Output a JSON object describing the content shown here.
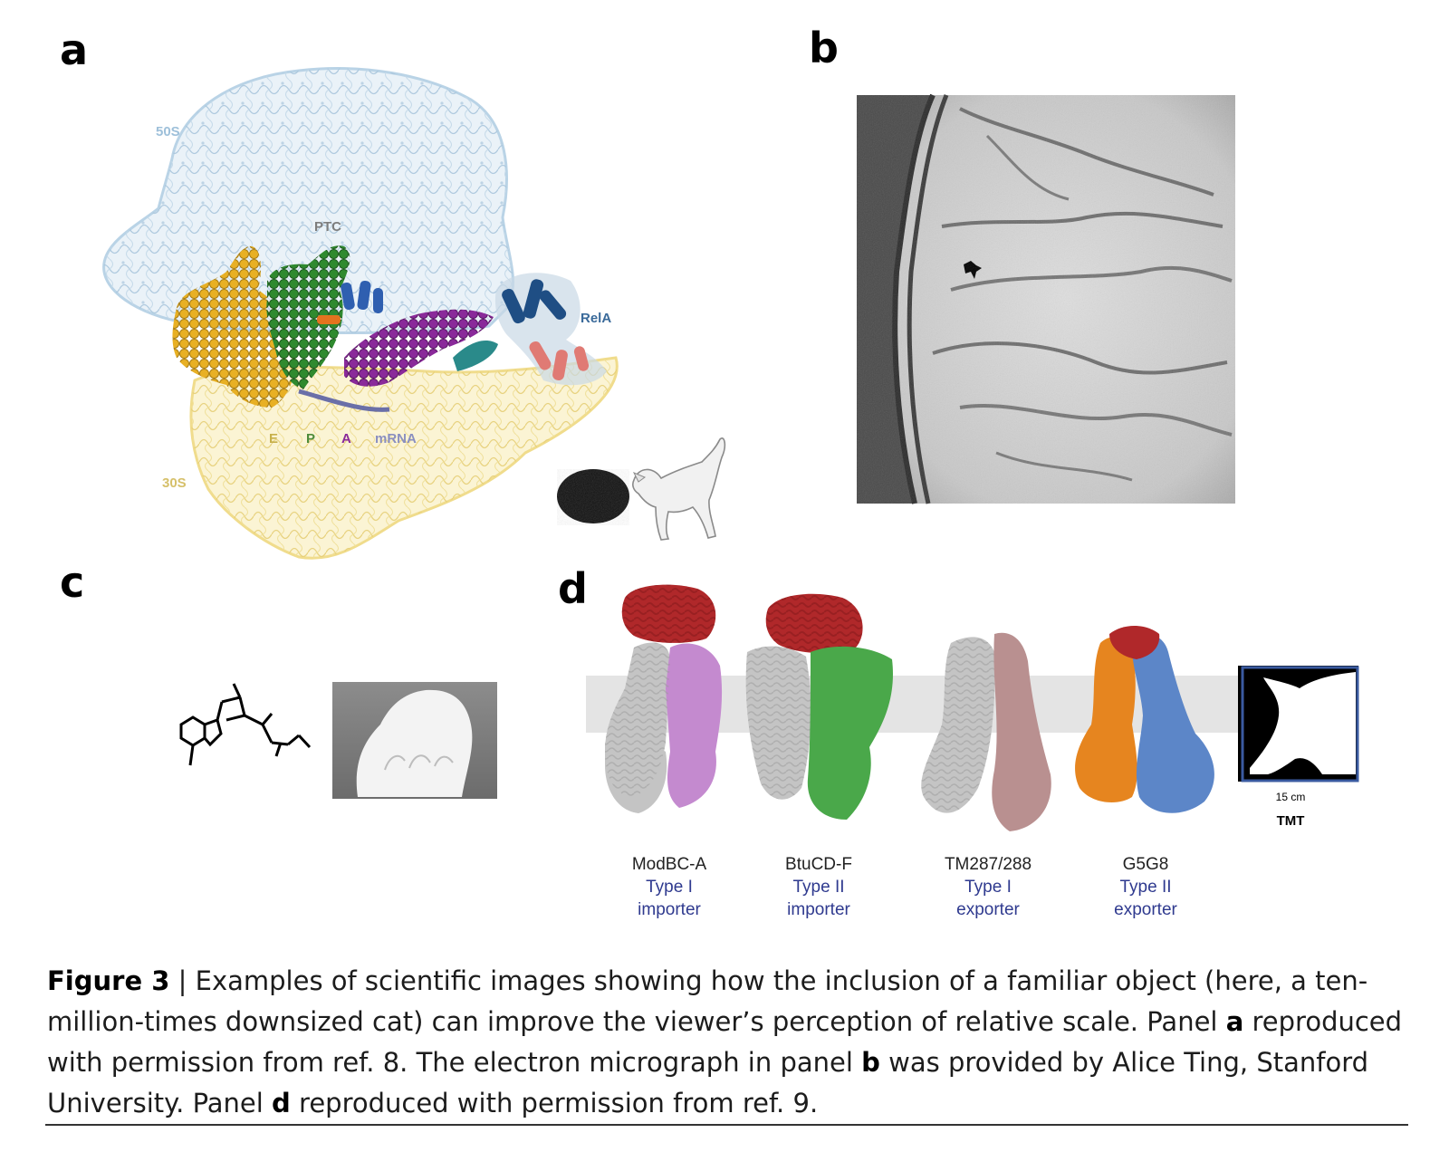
{
  "panels": {
    "a": {
      "letter": "a",
      "labels": {
        "s50": "50S",
        "ptc": "PTC",
        "rela": "RelA",
        "e": "E",
        "p": "P",
        "a": "A",
        "mrna": "mRNA",
        "s30": "30S"
      },
      "colors": {
        "s50": "#b9d3e6",
        "s30": "#f0dc8c",
        "e_trna": "#e8b024",
        "p_trna": "#2f8a2f",
        "a_trna": "#8a2a9a",
        "rela": "#1f4e84",
        "rela_tail": "#e07a74",
        "teal": "#2a8a8a",
        "mrna": "#6a6fa8"
      }
    },
    "b": {
      "letter": "b"
    },
    "c": {
      "letter": "c"
    },
    "d": {
      "letter": "d",
      "transporters": [
        {
          "name": "ModBC-A",
          "type": "Type I",
          "role": "importer"
        },
        {
          "name": "BtuCD-F",
          "type": "Type II",
          "role": "importer"
        },
        {
          "name": "TM287/288",
          "type": "Type I",
          "role": "exporter"
        },
        {
          "name": "G5G8",
          "type": "Type II",
          "role": "exporter"
        }
      ],
      "scale": {
        "length": "15 cm",
        "label": "TMT"
      },
      "colors": {
        "red": "#b0282a",
        "grey": "#c4c4c4",
        "violet": "#c48acf",
        "green": "#4aa84a",
        "mauve": "#b99090",
        "orange": "#e6851f",
        "blue": "#5c86c8",
        "membrane": "#e4e4e4"
      }
    }
  },
  "caption": {
    "bold_lead": "Figure 3",
    "sep": " | ",
    "part1": "Examples of scientific images showing how the inclusion of a familiar object (here, a ten-million-times downsized cat) can improve the viewer’s perception of relative scale. Panel ",
    "ref_a": "a",
    "part2": " reproduced with permission from ref. 8. The electron micrograph in panel ",
    "ref_b": "b",
    "part3": " was provided by Alice Ting, Stanford University. Panel ",
    "ref_d": "d",
    "part4": " reproduced with permission from ref. 9."
  }
}
